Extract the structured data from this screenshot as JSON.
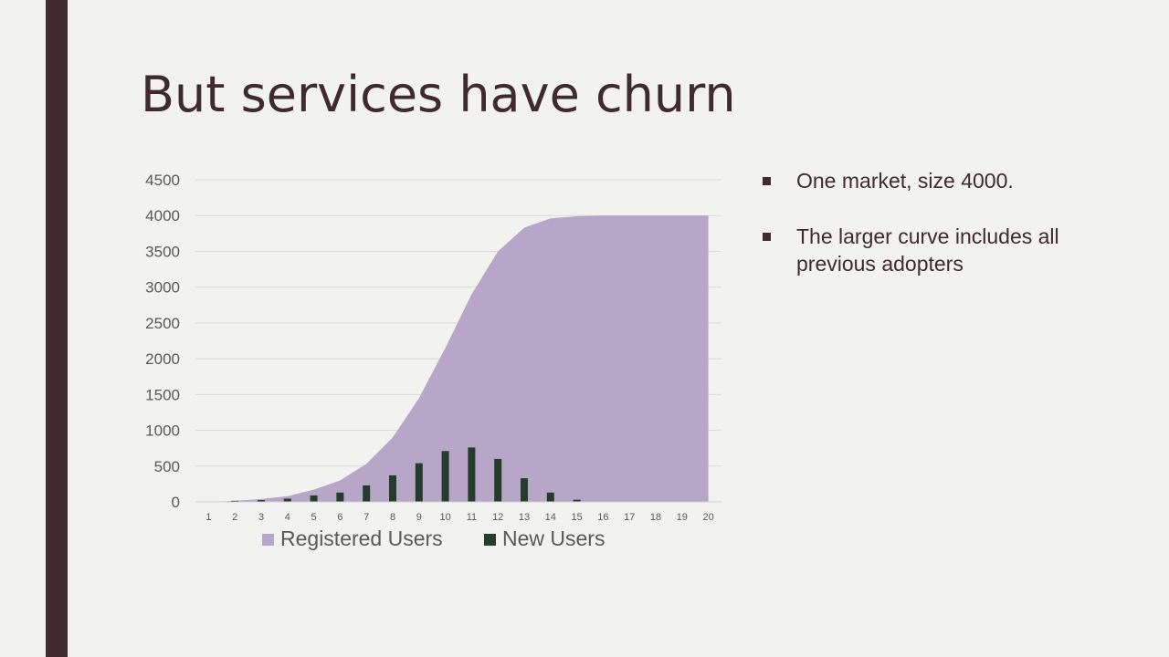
{
  "slide": {
    "title": "But services have churn",
    "bullets": [
      "One market, size 4000.",
      "The larger curve includes all previous adopters"
    ]
  },
  "colors": {
    "sidebar": "#3f2a30",
    "background": "#f2f2f0",
    "registered_users": "#b7a6c8",
    "new_users": "#243d2c",
    "text": "#3f2a30"
  },
  "chart_data": {
    "type": "area",
    "categories": [
      "1",
      "2",
      "3",
      "4",
      "5",
      "6",
      "7",
      "8",
      "9",
      "10",
      "11",
      "12",
      "13",
      "14",
      "15",
      "16",
      "17",
      "18",
      "19",
      "20"
    ],
    "series": [
      {
        "name": "Registered Users",
        "type": "area",
        "values": [
          0,
          15,
          40,
          80,
          170,
          300,
          530,
          900,
          1450,
          2150,
          2900,
          3500,
          3830,
          3960,
          3990,
          4000,
          4000,
          4000,
          4000,
          4000
        ]
      },
      {
        "name": "New Users",
        "type": "bar",
        "values": [
          0,
          15,
          25,
          45,
          90,
          130,
          230,
          370,
          540,
          710,
          760,
          600,
          330,
          130,
          30,
          0,
          0,
          0,
          0,
          0
        ]
      }
    ],
    "yticks": [
      "0",
      "500",
      "1000",
      "1500",
      "2000",
      "2500",
      "3000",
      "3500",
      "4000",
      "4500"
    ],
    "ylim": [
      0,
      4500
    ],
    "grid": true,
    "legend_position": "bottom"
  }
}
